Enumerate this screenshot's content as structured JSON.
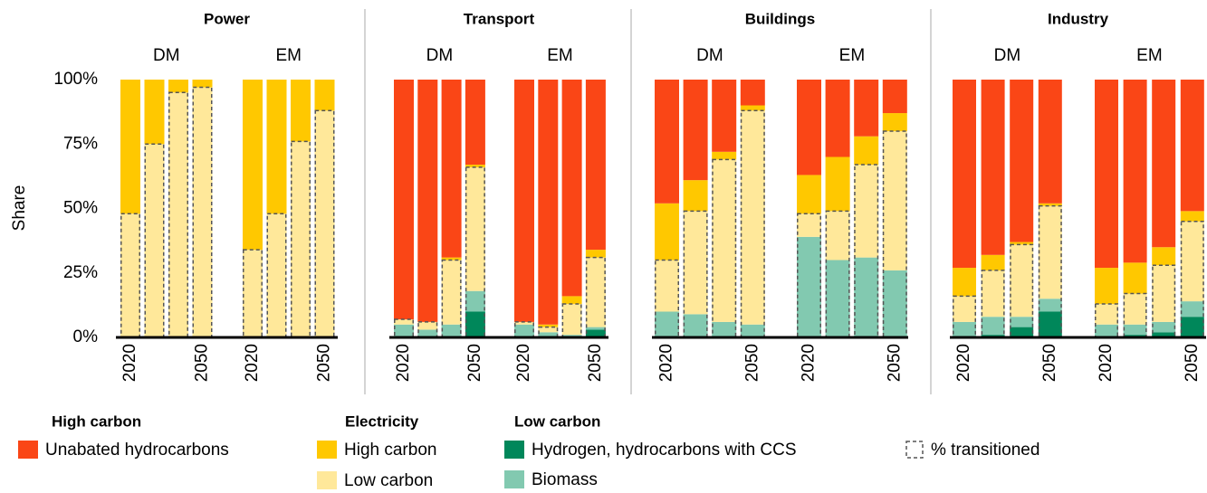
{
  "chart_data": {
    "type": "bar",
    "ylabel": "Share",
    "ylim": [
      0,
      100
    ],
    "yticks": [
      {
        "value": 0,
        "label": "0%"
      },
      {
        "value": 25,
        "label": "25%"
      },
      {
        "value": 50,
        "label": "50%"
      },
      {
        "value": 75,
        "label": "75%"
      },
      {
        "value": 100,
        "label": "100%"
      }
    ],
    "series": [
      {
        "name": "Hydrogen, hydrocarbons with CCS",
        "color": "#00875a"
      },
      {
        "name": "Biomass",
        "color": "#82c9b0"
      },
      {
        "name": "Low carbon",
        "color": "#ffe89a"
      },
      {
        "name": "High carbon",
        "color": "#ffc800"
      },
      {
        "name": "Unabated hydrocarbons",
        "color": "#fa4616"
      }
    ],
    "legend_groups": [
      {
        "name": "High carbon",
        "color": "#fa4616",
        "members": [
          4
        ]
      },
      {
        "name": "Electricity",
        "color": "#c9a400",
        "members": [
          3,
          2
        ]
      },
      {
        "name": "Low carbon",
        "color": "#00875a",
        "members": [
          0,
          1
        ]
      }
    ],
    "transitioned_label": "% transitioned",
    "transitioned_members": [
      0,
      1,
      2
    ],
    "panels": [
      {
        "title": "Power",
        "groups": [
          "DM",
          "EM"
        ],
        "categories": [
          "2020",
          null,
          null,
          "2050",
          "2020",
          null,
          null,
          "2050"
        ],
        "series": [
          {
            "values": [
              0,
              0,
              0,
              0,
              0,
              0,
              0,
              0
            ]
          },
          {
            "values": [
              0,
              0,
              0,
              0,
              0,
              0,
              0,
              0
            ]
          },
          {
            "values": [
              48,
              75,
              95,
              97,
              34,
              48,
              76,
              88
            ]
          },
          {
            "values": [
              52,
              25,
              5,
              3,
              66,
              52,
              24,
              12
            ]
          },
          {
            "values": [
              0,
              0,
              0,
              0,
              0,
              0,
              0,
              0
            ]
          }
        ]
      },
      {
        "title": "Transport",
        "groups": [
          "DM",
          "EM"
        ],
        "categories": [
          "2020",
          null,
          null,
          "2050",
          "2020",
          null,
          null,
          "2050"
        ],
        "series": [
          {
            "values": [
              0,
              0,
              0,
              10,
              0,
              0,
              0,
              3
            ]
          },
          {
            "values": [
              5,
              3,
              5,
              8,
              5,
              2,
              1,
              1
            ]
          },
          {
            "values": [
              2,
              3,
              25,
              48,
              1,
              2,
              12,
              27
            ]
          },
          {
            "values": [
              0,
              0,
              1,
              1,
              0,
              1,
              3,
              3
            ]
          },
          {
            "values": [
              93,
              94,
              69,
              33,
              94,
              95,
              84,
              66
            ]
          }
        ]
      },
      {
        "title": "Buildings",
        "groups": [
          "DM",
          "EM"
        ],
        "categories": [
          "2020",
          null,
          null,
          "2050",
          "2020",
          null,
          null,
          "2050"
        ],
        "series": [
          {
            "values": [
              0,
              0,
              0,
              0,
              0,
              0,
              0,
              0
            ]
          },
          {
            "values": [
              10,
              9,
              6,
              5,
              39,
              30,
              31,
              26
            ]
          },
          {
            "values": [
              20,
              40,
              63,
              83,
              9,
              19,
              36,
              54
            ]
          },
          {
            "values": [
              22,
              12,
              3,
              2,
              15,
              21,
              11,
              7
            ]
          },
          {
            "values": [
              48,
              39,
              28,
              10,
              37,
              30,
              22,
              13
            ]
          }
        ]
      },
      {
        "title": "Industry",
        "groups": [
          "DM",
          "EM"
        ],
        "categories": [
          "2020",
          null,
          null,
          "2050",
          "2020",
          null,
          null,
          "2050"
        ],
        "series": [
          {
            "values": [
              0,
              1,
              4,
              10,
              0,
              1,
              2,
              8
            ]
          },
          {
            "values": [
              6,
              7,
              4,
              5,
              5,
              4,
              4,
              6
            ]
          },
          {
            "values": [
              10,
              18,
              28,
              36,
              8,
              12,
              22,
              31
            ]
          },
          {
            "values": [
              11,
              6,
              1,
              1,
              14,
              12,
              7,
              4
            ]
          },
          {
            "values": [
              73,
              68,
              63,
              48,
              73,
              71,
              65,
              51
            ]
          }
        ]
      }
    ]
  }
}
